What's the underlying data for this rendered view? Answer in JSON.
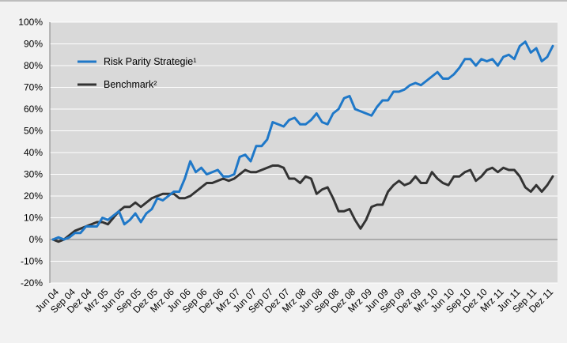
{
  "chart_data": {
    "type": "line",
    "title": "",
    "xlabel": "",
    "ylabel": "",
    "ylim": [
      -20,
      100
    ],
    "y_ticks": [
      "-20%",
      "-10%",
      "0%",
      "10%",
      "20%",
      "30%",
      "40%",
      "50%",
      "60%",
      "70%",
      "80%",
      "90%",
      "100%"
    ],
    "y_tick_values": [
      -20,
      -10,
      0,
      10,
      20,
      30,
      40,
      50,
      60,
      70,
      80,
      90,
      100
    ],
    "x_tick_labels": [
      "Jun 04",
      "Sep 04",
      "Dez 04",
      "Mrz 05",
      "Jun 05",
      "Sep 05",
      "Dez 05",
      "Mrz 06",
      "Jun 06",
      "Sep 06",
      "Dez 06",
      "Mrz 07",
      "Jun 07",
      "Sep 07",
      "Dez 07",
      "Mrz 08",
      "Jun 08",
      "Sep 08",
      "Dez 08",
      "Mrz 09",
      "Jun 09",
      "Sep 09",
      "Dez 09",
      "Mrz 10",
      "Jun 10",
      "Sep 10",
      "Dez 10",
      "Mrz 11",
      "Jun 11",
      "Sep 11",
      "Dez 11"
    ],
    "grid": "horizontal",
    "legend_position": "top-left",
    "series": [
      {
        "name": "Risk Parity Strategie¹",
        "color": "#1f78c8",
        "values": [
          0,
          1,
          0,
          1,
          3,
          3,
          6,
          6,
          6,
          10,
          9,
          11,
          13,
          7,
          9,
          12,
          8,
          12,
          14,
          19,
          18,
          20,
          22,
          22,
          28,
          36,
          31,
          33,
          30,
          31,
          32,
          29,
          29,
          30,
          38,
          39,
          36,
          43,
          43,
          46,
          54,
          53,
          52,
          55,
          56,
          53,
          53,
          55,
          58,
          54,
          53,
          58,
          60,
          65,
          66,
          60,
          59,
          58,
          57,
          61,
          64,
          64,
          68,
          68,
          69,
          71,
          72,
          71,
          73,
          75,
          77,
          74,
          74,
          76,
          79,
          83,
          83,
          80,
          83,
          82,
          83,
          80,
          84,
          85,
          83,
          89,
          91,
          86,
          88,
          82,
          84,
          89
        ]
      },
      {
        "name": "Benchmark²",
        "color": "#333333",
        "values": [
          0,
          -1,
          0,
          2,
          4,
          5,
          6,
          7,
          8,
          8,
          7,
          10,
          13,
          15,
          15,
          17,
          15,
          17,
          19,
          20,
          21,
          21,
          21,
          19,
          19,
          20,
          22,
          24,
          26,
          26,
          27,
          28,
          27,
          28,
          30,
          32,
          31,
          31,
          32,
          33,
          34,
          34,
          33,
          28,
          28,
          26,
          29,
          28,
          21,
          23,
          24,
          19,
          13,
          13,
          14,
          9,
          5,
          9,
          15,
          16,
          16,
          22,
          25,
          27,
          25,
          26,
          29,
          26,
          26,
          31,
          28,
          26,
          25,
          29,
          29,
          31,
          32,
          27,
          29,
          32,
          33,
          31,
          33,
          32,
          32,
          29,
          24,
          22,
          25,
          22,
          25,
          29
        ]
      }
    ]
  }
}
